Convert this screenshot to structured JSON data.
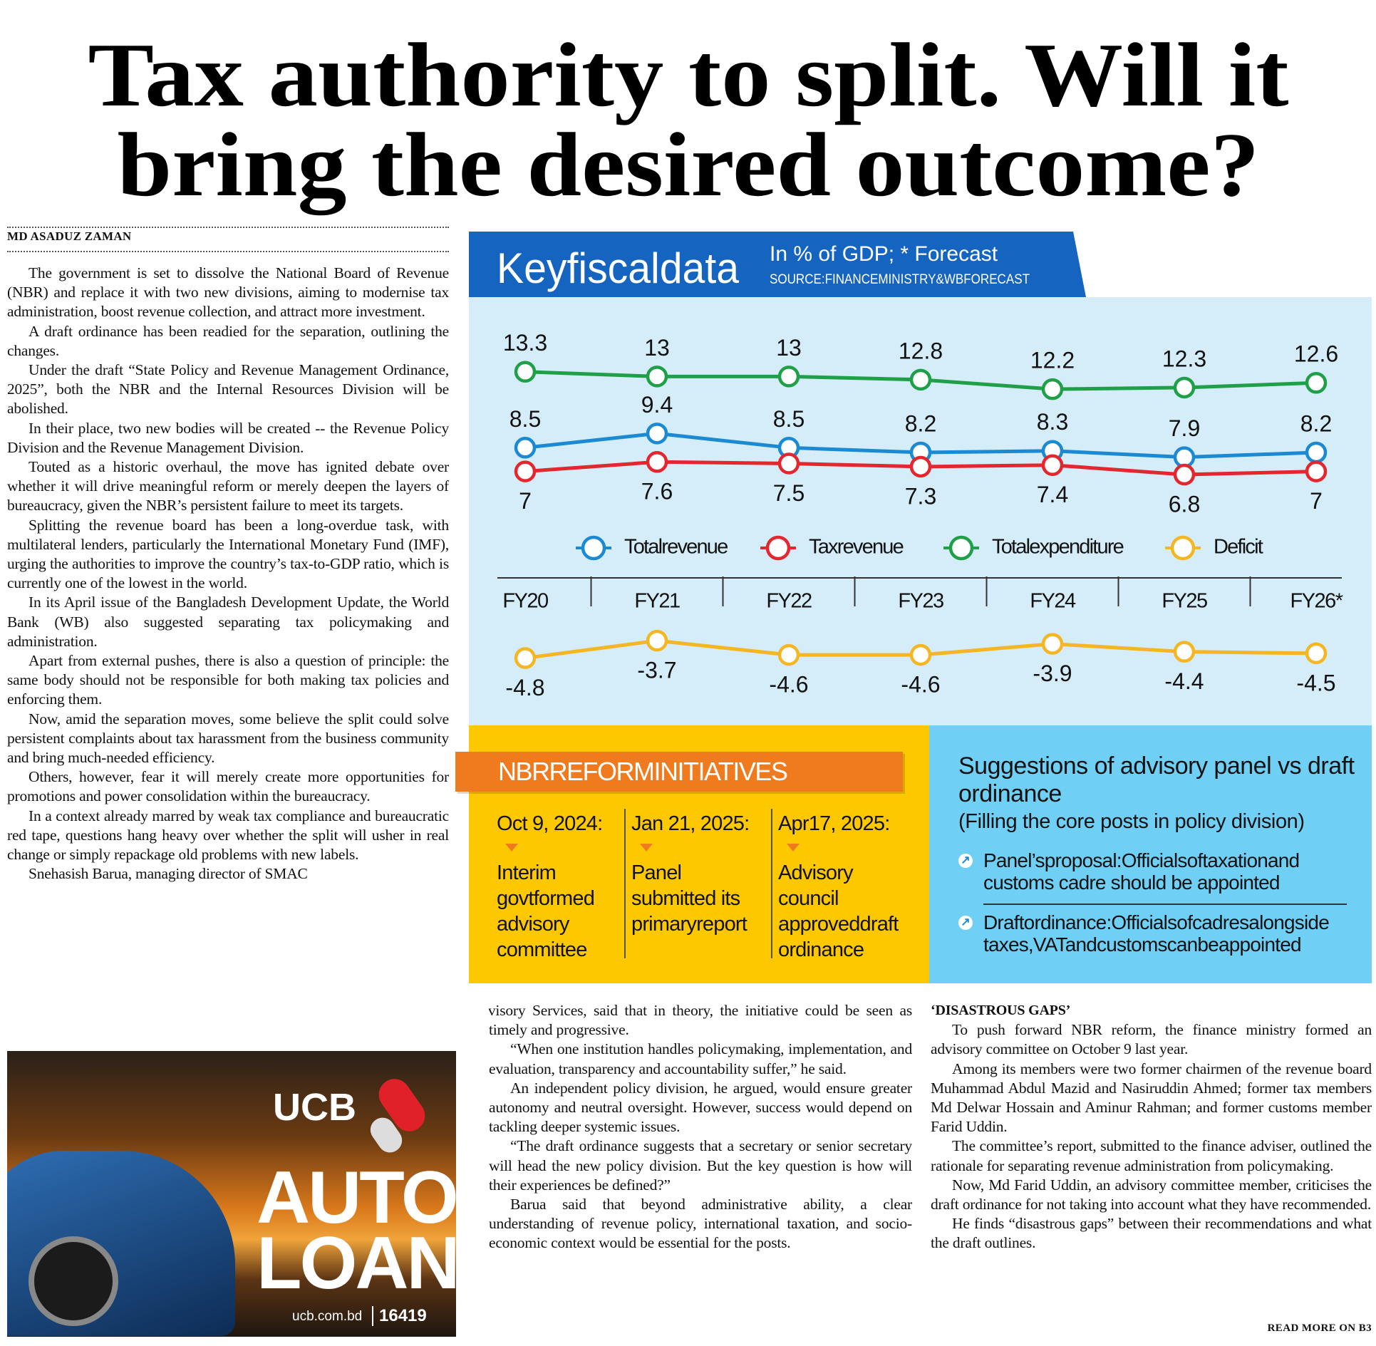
{
  "headline": [
    "Tax authority to split. Will it",
    "bring the desired outcome?"
  ],
  "byline": "MD ASADUZ ZAMAN",
  "article": {
    "column1": [
      "The government is set to dissolve the National Board of Revenue (NBR) and replace it with two new divisions, aiming to modernise tax administration, boost revenue collection, and attract more investment.",
      "A draft ordinance has been readied for the separation, outlining the changes.",
      "Under the draft “State Policy and Revenue Management Ordinance, 2025”, both the NBR and the Internal Resources Division will be abolished.",
      "In their place, two new bodies will be created -- the Revenue Policy Division and the Revenue Management Division.",
      "Touted as a historic overhaul, the move has ignited debate over whether it will drive meaningful reform or merely deepen the layers of bureaucracy, given the NBR’s persistent failure to meet its targets.",
      "Splitting the revenue board has been a long-overdue task, with multilateral lenders, particularly the International Monetary Fund (IMF), urging the authorities to improve the country’s tax-to-GDP ratio, which is currently one of the lowest in the world.",
      "In its April issue of the Bangladesh Development Update, the World Bank (WB) also suggested separating tax policymaking and administration.",
      "Apart from external pushes, there is also a question of principle: the same body should not be responsible for both making tax policies and enforcing them.",
      "Now, amid the separation moves, some believe the split could solve persistent complaints about tax harassment from the business community and bring much-needed efficiency.",
      "Others, however, fear it will merely create more opportunities for promotions and power consolidation within the bureaucracy.",
      "In a context already marred by weak tax compliance and bureaucratic red tape, questions hang heavy over whether the split will usher in real change or simply repackage old problems with new labels.",
      "Snehasish Barua, managing director of SMAC"
    ],
    "column2": [
      "Advisory Services, said that in theory, the initiative could be seen as timely and progressive.",
      "“When one institution handles policymaking, implementation, and evaluation, transparency and accountability suffer,” he said.",
      "An independent policy division, he argued, would ensure greater autonomy and neutral oversight. However, success would depend on tackling deeper systemic issues.",
      "“The draft ordinance suggests that a secretary or senior secretary will head the new policy division. But the key question is how will their experiences be defined?”",
      "Barua said that beyond administrative ability, a clear understanding of revenue policy, international taxation, and socio-economic context would be essential for the posts."
    ],
    "column3": {
      "subhead": "‘DISASTROUS GAPS’",
      "paragraphs": [
        "To push forward NBR reform, the finance ministry formed an advisory committee on October 9 last year.",
        "Among its members were two former chairmen of the revenue board Muhammad Abdul Mazid and Nasiruddin Ahmed; former tax members Md Delwar Hossain and Aminur Rahman; and former customs member Farid Uddin.",
        "The committee’s report, submitted to the finance adviser, outlined the rationale for separating revenue administration from policymaking.",
        "Now, Md Farid Uddin, an advisory committee member, criticises the draft ordinance for not taking into account what they have recommended.",
        "He finds “disastrous gaps” between their recommendations and what the draft outlines."
      ]
    },
    "read_more": "READ MORE ON B3"
  },
  "chart_data": {
    "type": "line",
    "title": "Keyfiscaldata",
    "subtitle": "In % of GDP; * Forecast",
    "source": "SOURCE:FINANCEMINISTRY&WBFORECAST",
    "categories": [
      "FY20",
      "FY21",
      "FY22",
      "FY23",
      "FY24",
      "FY25",
      "FY26*"
    ],
    "series": [
      {
        "name": "Totalrevenue",
        "color": "#1b8ad3",
        "values": [
          8.5,
          9.4,
          8.5,
          8.2,
          8.3,
          7.9,
          8.2
        ]
      },
      {
        "name": "Taxrevenue",
        "color": "#e4262e",
        "values": [
          7,
          7.6,
          7.5,
          7.3,
          7.4,
          6.8,
          7
        ]
      },
      {
        "name": "Totalexpenditure",
        "color": "#1e9f48",
        "values": [
          13.3,
          13,
          13,
          12.8,
          12.2,
          12.3,
          12.6
        ]
      },
      {
        "name": "Deficit",
        "color": "#f5b623",
        "values": [
          -4.8,
          -3.7,
          -4.6,
          -4.6,
          -3.9,
          -4.4,
          -4.5
        ]
      }
    ]
  },
  "reform_initiatives": {
    "title": "NBRREFORMINITIATIVES",
    "items": [
      {
        "date": "Oct 9, 2024:",
        "text": "Interim govtformed advisory committee"
      },
      {
        "date": "Jan 21, 2025:",
        "text": "Panel submitted its primaryreport"
      },
      {
        "date": "Apr17, 2025:",
        "text": "Advisory council approveddraft ordinance"
      }
    ]
  },
  "suggestions": {
    "title": "Suggestions of advisory panel vs draft ordinance",
    "subtitle": "(Filling the core posts in policy division)",
    "items": [
      "Panel’sproposal:Officialsoftaxationand customs cadre should be appointed",
      "Draftordinance:Officialsofcadresalongside taxes,VATandcustomscanbeappointed"
    ]
  },
  "ad": {
    "brand": "UCB",
    "lines": [
      "AUTO",
      "LOAN"
    ],
    "website": "ucb.com.bd",
    "hotline": "16419"
  }
}
